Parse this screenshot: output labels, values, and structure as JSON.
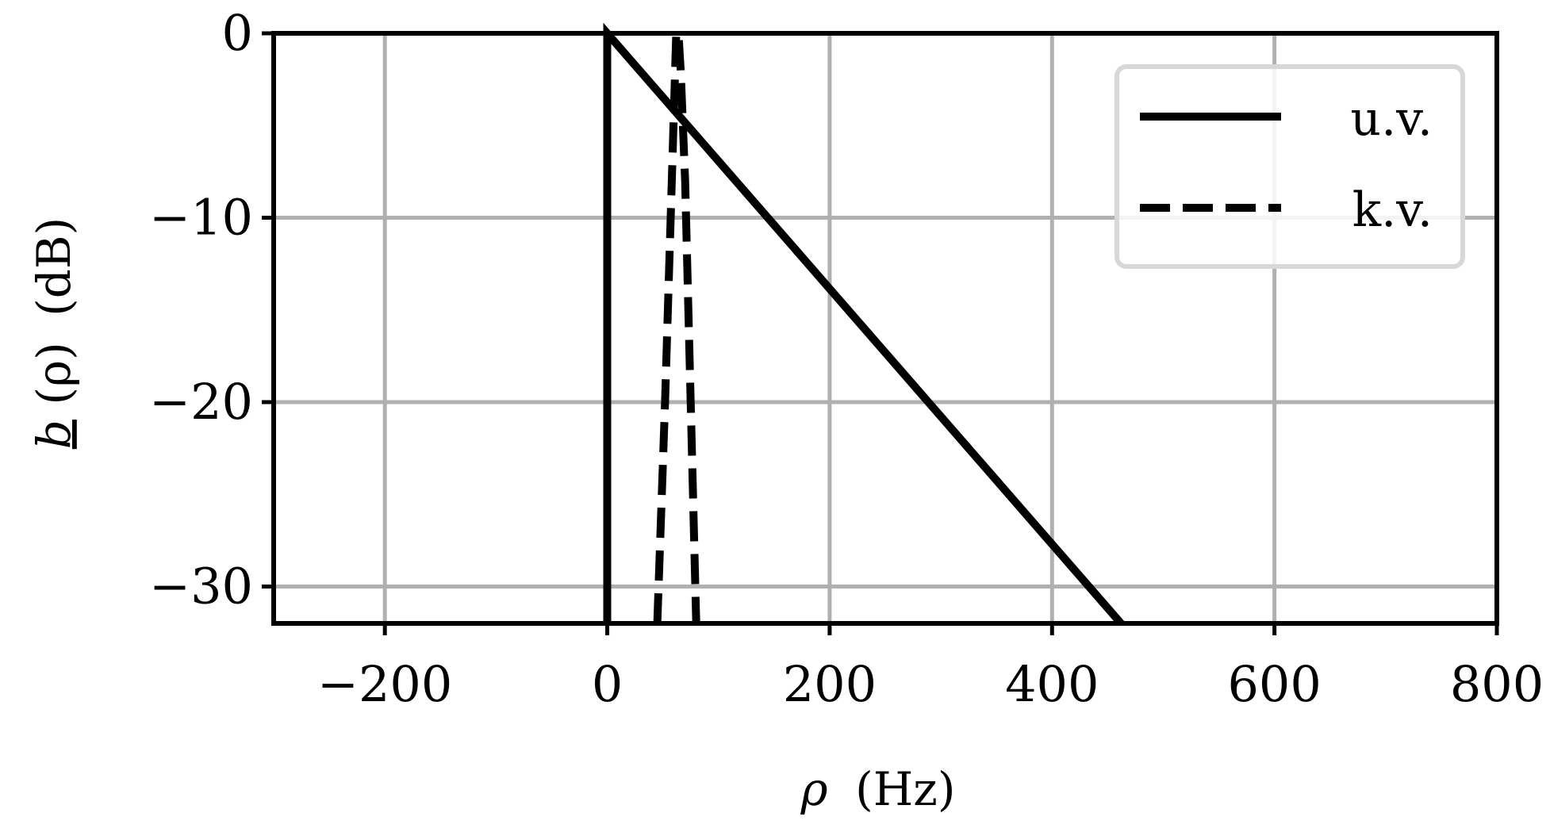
{
  "chart_data": {
    "type": "line",
    "title": "",
    "xlabel": {
      "symbol": "ρ",
      "unit": "(Hz)"
    },
    "ylabel": {
      "symbol_b": "b",
      "arg": "(ρ)",
      "unit": "(dB)"
    },
    "xlim": [
      -300,
      800
    ],
    "ylim": [
      -32,
      0
    ],
    "xticks": [
      -200,
      0,
      200,
      400,
      600,
      800
    ],
    "yticks": [
      0,
      -10,
      -20,
      -30
    ],
    "xtick_labels": [
      "−200",
      "0",
      "200",
      "400",
      "600",
      "800"
    ],
    "ytick_labels": [
      "0",
      "−10",
      "−20",
      "−30"
    ],
    "grid": true,
    "legend_position": "top-right",
    "series": [
      {
        "name": "u.v.",
        "style": "solid",
        "color": "#000000",
        "points": [
          [
            0,
            -32
          ],
          [
            0,
            0
          ],
          [
            462,
            -32
          ]
        ]
      },
      {
        "name": "k.v.",
        "style": "dashed",
        "color": "#000000",
        "points": [
          [
            45,
            -32
          ],
          [
            52,
            -20
          ],
          [
            58,
            -8
          ],
          [
            61,
            -2
          ],
          [
            62,
            0
          ],
          [
            64,
            0
          ],
          [
            66,
            -2
          ],
          [
            70,
            -8
          ],
          [
            75,
            -20
          ],
          [
            80,
            -32
          ]
        ]
      }
    ]
  }
}
